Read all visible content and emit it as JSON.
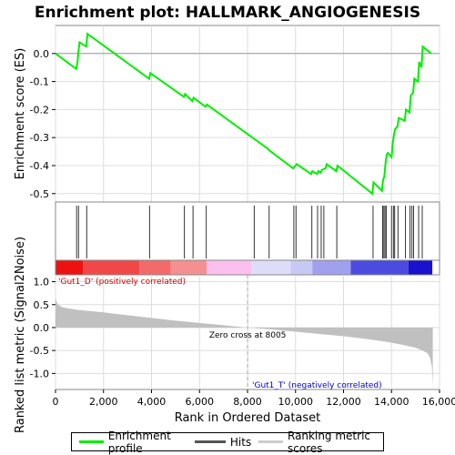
{
  "chart_data": {
    "type": "line",
    "title": "Enrichment plot: HALLMARK_ANGIOGENESIS",
    "top_panel": {
      "ylabel": "Enrichment score (ES)",
      "ylim": [
        -0.53,
        0.1
      ],
      "yticks": [
        "0.0",
        "-0.1",
        "-0.2",
        "-0.3",
        "-0.4",
        "-0.5"
      ],
      "ytick_values": [
        0.0,
        -0.1,
        -0.2,
        -0.3,
        -0.4,
        -0.5
      ],
      "series": [
        {
          "name": "Enrichment profile",
          "color": "#00ee00",
          "x": [
            0,
            860,
            910,
            960,
            1000,
            1280,
            1330,
            3900,
            3950,
            5350,
            5400,
            5700,
            5750,
            6250,
            6300,
            8850,
            8900,
            9900,
            9950,
            10000,
            10050,
            10650,
            10700,
            10900,
            10950,
            11050,
            11100,
            11250,
            11300,
            11700,
            11750,
            13200,
            13250,
            13600,
            13650,
            13700,
            13750,
            13800,
            13850,
            14000,
            14050,
            14100,
            14150,
            14250,
            14300,
            14550,
            14600,
            14750,
            14800,
            14900,
            14950,
            15100,
            15150,
            15250,
            15300,
            15650
          ],
          "y": [
            0.0,
            -0.055,
            -0.035,
            0.01,
            0.04,
            0.025,
            0.07,
            -0.09,
            -0.07,
            -0.155,
            -0.145,
            -0.17,
            -0.158,
            -0.19,
            -0.182,
            -0.34,
            -0.345,
            -0.41,
            -0.405,
            -0.4,
            -0.395,
            -0.43,
            -0.42,
            -0.43,
            -0.42,
            -0.425,
            -0.415,
            -0.41,
            -0.395,
            -0.42,
            -0.4,
            -0.5,
            -0.46,
            -0.49,
            -0.45,
            -0.44,
            -0.39,
            -0.36,
            -0.355,
            -0.37,
            -0.32,
            -0.29,
            -0.27,
            -0.26,
            -0.23,
            -0.24,
            -0.2,
            -0.21,
            -0.15,
            -0.14,
            -0.09,
            -0.1,
            -0.03,
            -0.05,
            0.025,
            0.0
          ]
        }
      ]
    },
    "hits_panel": {
      "label": "Hits",
      "hit_positions": [
        880,
        960,
        1300,
        3920,
        5370,
        5730,
        6280,
        8280,
        8900,
        9930,
        10020,
        10680,
        10920,
        11070,
        11180,
        11720,
        13230,
        13630,
        13680,
        13730,
        13780,
        14000,
        14080,
        14130,
        14270,
        14580,
        14770,
        14850,
        14920,
        15130,
        15280
      ]
    },
    "heatmap_bar": {
      "label_pos": "'Gut1_D' (positively correlated)",
      "label_neg": "'Gut1_T' (negatively correlated)",
      "segments": [
        {
          "end": 1150,
          "color": "#ee1111"
        },
        {
          "end": 3500,
          "color": "#f04848"
        },
        {
          "end": 4800,
          "color": "#f26a6a"
        },
        {
          "end": 6300,
          "color": "#f59090"
        },
        {
          "end": 8150,
          "color": "#fcc0ee"
        },
        {
          "end": 9800,
          "color": "#ddddfa"
        },
        {
          "end": 10700,
          "color": "#c8c8f5"
        },
        {
          "end": 12300,
          "color": "#a0a0ee"
        },
        {
          "end": 14700,
          "color": "#4b4be0"
        },
        {
          "end": 15700,
          "color": "#1a11cc"
        }
      ]
    },
    "bottom_panel": {
      "ylabel": "Ranked list metric (Signal2Noise)",
      "xlabel": "Rank in Ordered Dataset",
      "ylim": [
        -1.35,
        1.15
      ],
      "yticks": [
        "1.0",
        "0.5",
        "0.0",
        "-0.5",
        "-1.0"
      ],
      "ytick_values": [
        1.0,
        0.5,
        0.0,
        -0.5,
        -1.0
      ],
      "zero_cross_label": "Zero cross at 8005",
      "zero_cross": 8005,
      "metric_profile": {
        "x": [
          0,
          50,
          150,
          300,
          600,
          1000,
          2000,
          3000,
          4000,
          5000,
          6000,
          7000,
          8005,
          9000,
          10000,
          11000,
          12000,
          13000,
          13800,
          14500,
          15000,
          15300,
          15500,
          15600,
          15680,
          15720
        ],
        "y": [
          0.65,
          0.55,
          0.48,
          0.44,
          0.41,
          0.38,
          0.33,
          0.27,
          0.21,
          0.15,
          0.1,
          0.05,
          0.0,
          -0.04,
          -0.09,
          -0.14,
          -0.19,
          -0.25,
          -0.31,
          -0.38,
          -0.44,
          -0.5,
          -0.56,
          -0.65,
          -0.85,
          -1.3
        ]
      }
    },
    "xlim": [
      0,
      16000
    ],
    "xticks": [
      "0",
      "2,000",
      "4,000",
      "6,000",
      "8,000",
      "10,000",
      "12,000",
      "14,000",
      "16,000"
    ],
    "xtick_values": [
      0,
      2000,
      4000,
      6000,
      8000,
      10000,
      12000,
      14000,
      16000
    ],
    "legend": {
      "entries": [
        {
          "label": "Enrichment profile",
          "color": "#00ee00"
        },
        {
          "label": "Hits",
          "color": "#555555"
        },
        {
          "label": "Ranking metric scores",
          "color": "#cccccc"
        }
      ]
    },
    "colors": {
      "profile": "#00ee00",
      "metric_fill": "#c0c0c0",
      "zero_line": "#aaaaaa",
      "pos_label": "#cc0000",
      "neg_label": "#0000cc"
    }
  }
}
